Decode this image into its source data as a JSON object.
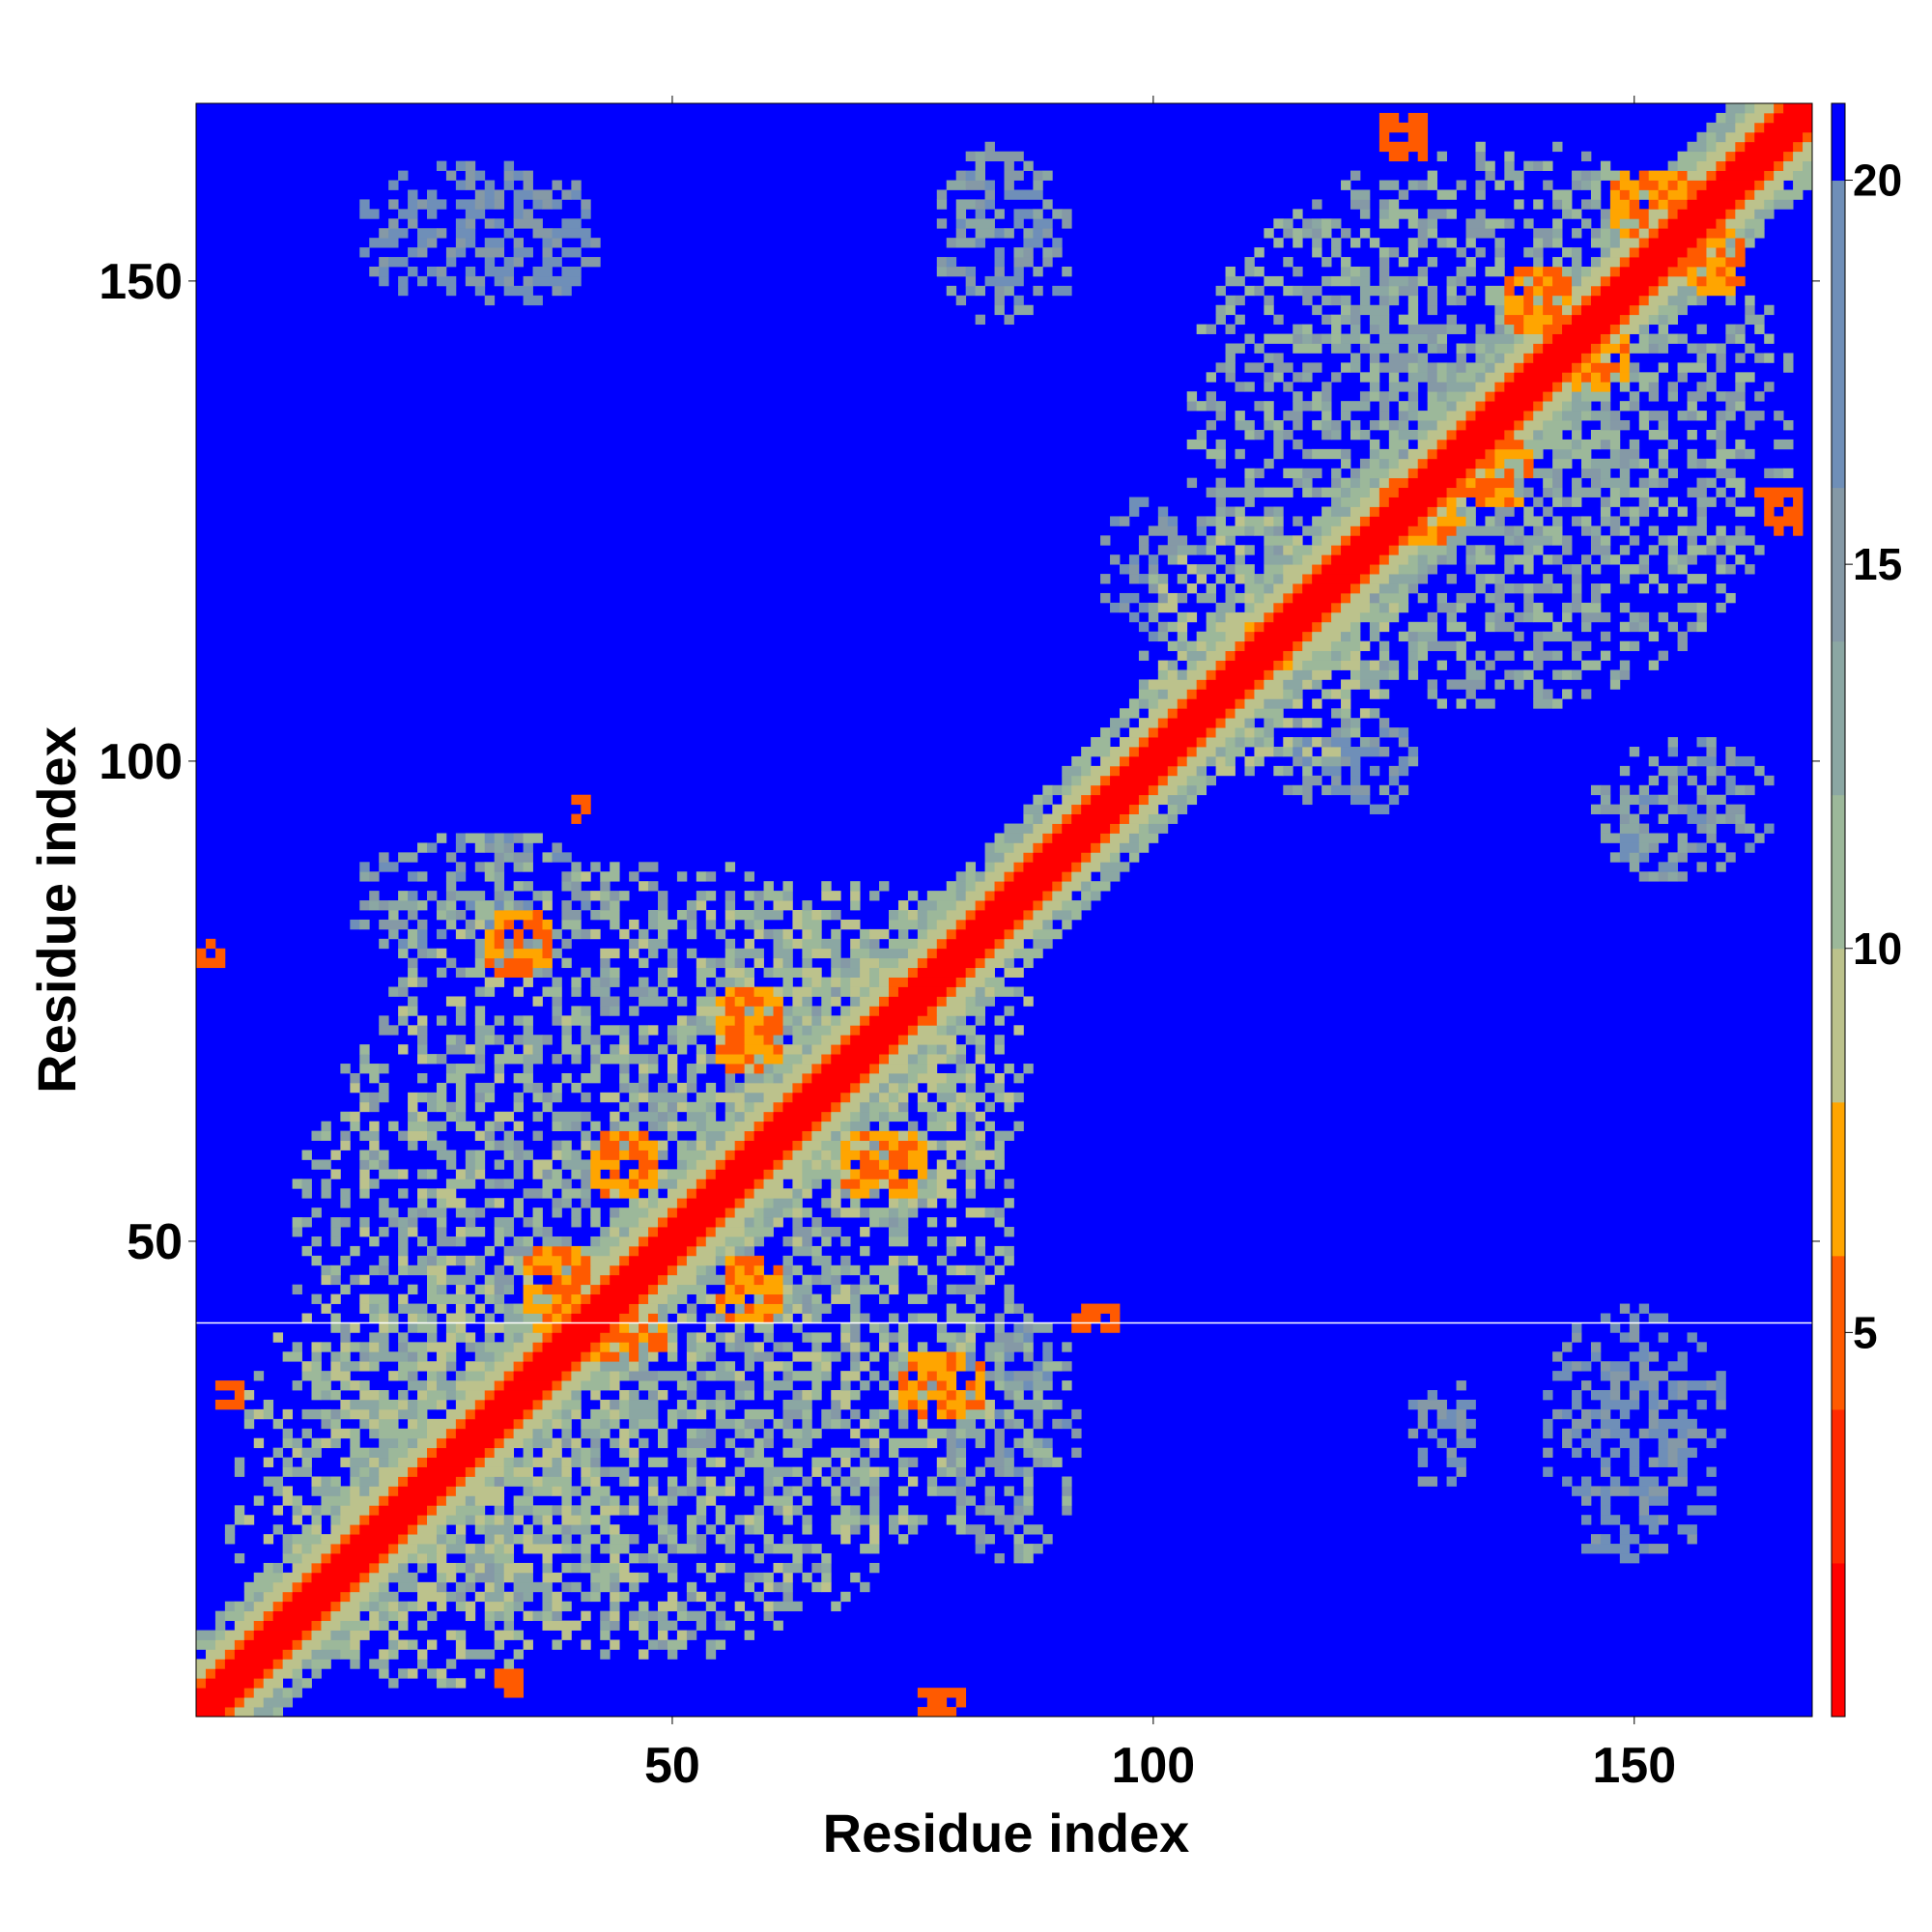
{
  "chart_data": {
    "type": "heatmap",
    "title": "",
    "xlabel": "Residue index",
    "ylabel": "Residue index",
    "n_residues": 168,
    "xlim": [
      1,
      168
    ],
    "ylim": [
      1,
      168
    ],
    "x_ticks": [
      50,
      100,
      150
    ],
    "y_ticks": [
      50,
      100,
      150
    ],
    "x_tick_labels": [
      "50",
      "100",
      "150"
    ],
    "y_tick_labels": [
      "50",
      "100",
      "150"
    ],
    "colorbar": {
      "range": [
        0,
        21
      ],
      "ticks": [
        5,
        10,
        15,
        20
      ],
      "tick_labels": [
        "5",
        "10",
        "15",
        "20"
      ],
      "colors": [
        {
          "from": 0,
          "to": 2,
          "color": "#ff0000"
        },
        {
          "from": 2,
          "to": 4,
          "color": "#ff2a00"
        },
        {
          "from": 4,
          "to": 6,
          "color": "#ff5a00"
        },
        {
          "from": 6,
          "to": 8,
          "color": "#ffa500"
        },
        {
          "from": 8,
          "to": 10,
          "color": "#bcc28c"
        },
        {
          "from": 10,
          "to": 12,
          "color": "#9cb89a"
        },
        {
          "from": 12,
          "to": 14,
          "color": "#8ba7a3"
        },
        {
          "from": 14,
          "to": 16,
          "color": "#8599a6"
        },
        {
          "from": 16,
          "to": 20,
          "color": "#6f8fb8"
        },
        {
          "from": 20,
          "to": 21,
          "color": "#0000ff"
        }
      ]
    },
    "background_value": 21,
    "diagonal_band": {
      "width_residues": 2,
      "value": 1
    },
    "hotspots": [
      {
        "x": 45,
        "y": 40,
        "rx": 5,
        "ry": 3,
        "value": 6
      },
      {
        "x": 38,
        "y": 45,
        "rx": 4,
        "ry": 5,
        "value": 6
      },
      {
        "x": 58,
        "y": 45,
        "rx": 4,
        "ry": 4,
        "value": 6
      },
      {
        "x": 45,
        "y": 58,
        "rx": 4,
        "ry": 4,
        "value": 6
      },
      {
        "x": 58,
        "y": 72,
        "rx": 4,
        "ry": 5,
        "value": 6
      },
      {
        "x": 72,
        "y": 58,
        "rx": 5,
        "ry": 4,
        "value": 6
      },
      {
        "x": 34,
        "y": 81,
        "rx": 4,
        "ry": 4,
        "value": 6
      },
      {
        "x": 78,
        "y": 35,
        "rx": 5,
        "ry": 4,
        "value": 6
      },
      {
        "x": 75,
        "y": 75,
        "rx": 3,
        "ry": 3,
        "value": 6
      },
      {
        "x": 41,
        "y": 95,
        "rx": 2,
        "ry": 2,
        "value": 5
      },
      {
        "x": 94,
        "y": 42,
        "rx": 3,
        "ry": 2,
        "value": 5
      },
      {
        "x": 2,
        "y": 80,
        "rx": 2,
        "ry": 2,
        "value": 5
      },
      {
        "x": 4,
        "y": 34,
        "rx": 2,
        "ry": 2,
        "value": 5
      },
      {
        "x": 33,
        "y": 4,
        "rx": 2,
        "ry": 2,
        "value": 5
      },
      {
        "x": 78,
        "y": 2,
        "rx": 3,
        "ry": 2,
        "value": 5
      },
      {
        "x": 128,
        "y": 126,
        "rx": 5,
        "ry": 4,
        "value": 6
      },
      {
        "x": 136,
        "y": 130,
        "rx": 4,
        "ry": 4,
        "value": 6
      },
      {
        "x": 146,
        "y": 142,
        "rx": 4,
        "ry": 4,
        "value": 6
      },
      {
        "x": 140,
        "y": 148,
        "rx": 4,
        "ry": 4,
        "value": 6
      },
      {
        "x": 152,
        "y": 158,
        "rx": 5,
        "ry": 4,
        "value": 6
      },
      {
        "x": 158,
        "y": 152,
        "rx": 4,
        "ry": 4,
        "value": 6
      },
      {
        "x": 126,
        "y": 165,
        "rx": 3,
        "ry": 3,
        "value": 5
      },
      {
        "x": 165,
        "y": 126,
        "rx": 3,
        "ry": 3,
        "value": 5
      },
      {
        "x": 112,
        "y": 112,
        "rx": 3,
        "ry": 3,
        "value": 6
      }
    ],
    "contact_clusters": [
      {
        "x": 48,
        "y": 48,
        "rx": 38,
        "ry": 42,
        "value": 12
      },
      {
        "x": 25,
        "y": 25,
        "rx": 22,
        "ry": 22,
        "value": 11
      },
      {
        "x": 70,
        "y": 70,
        "rx": 18,
        "ry": 18,
        "value": 11
      },
      {
        "x": 135,
        "y": 135,
        "rx": 32,
        "ry": 30,
        "value": 13
      },
      {
        "x": 112,
        "y": 112,
        "rx": 14,
        "ry": 14,
        "value": 11
      },
      {
        "x": 30,
        "y": 85,
        "rx": 14,
        "ry": 8,
        "value": 14
      },
      {
        "x": 85,
        "y": 30,
        "rx": 8,
        "ry": 14,
        "value": 14
      },
      {
        "x": 155,
        "y": 95,
        "rx": 10,
        "ry": 8,
        "value": 15
      },
      {
        "x": 85,
        "y": 155,
        "rx": 8,
        "ry": 10,
        "value": 15
      },
      {
        "x": 150,
        "y": 30,
        "rx": 10,
        "ry": 14,
        "value": 17
      },
      {
        "x": 30,
        "y": 155,
        "rx": 14,
        "ry": 8,
        "value": 17
      },
      {
        "x": 130,
        "y": 30,
        "rx": 4,
        "ry": 6,
        "value": 17
      },
      {
        "x": 120,
        "y": 100,
        "rx": 8,
        "ry": 6,
        "value": 16
      },
      {
        "x": 100,
        "y": 120,
        "rx": 6,
        "ry": 8,
        "value": 16
      }
    ],
    "horizontal_line": {
      "y": 41,
      "color": "#ffffff"
    }
  }
}
